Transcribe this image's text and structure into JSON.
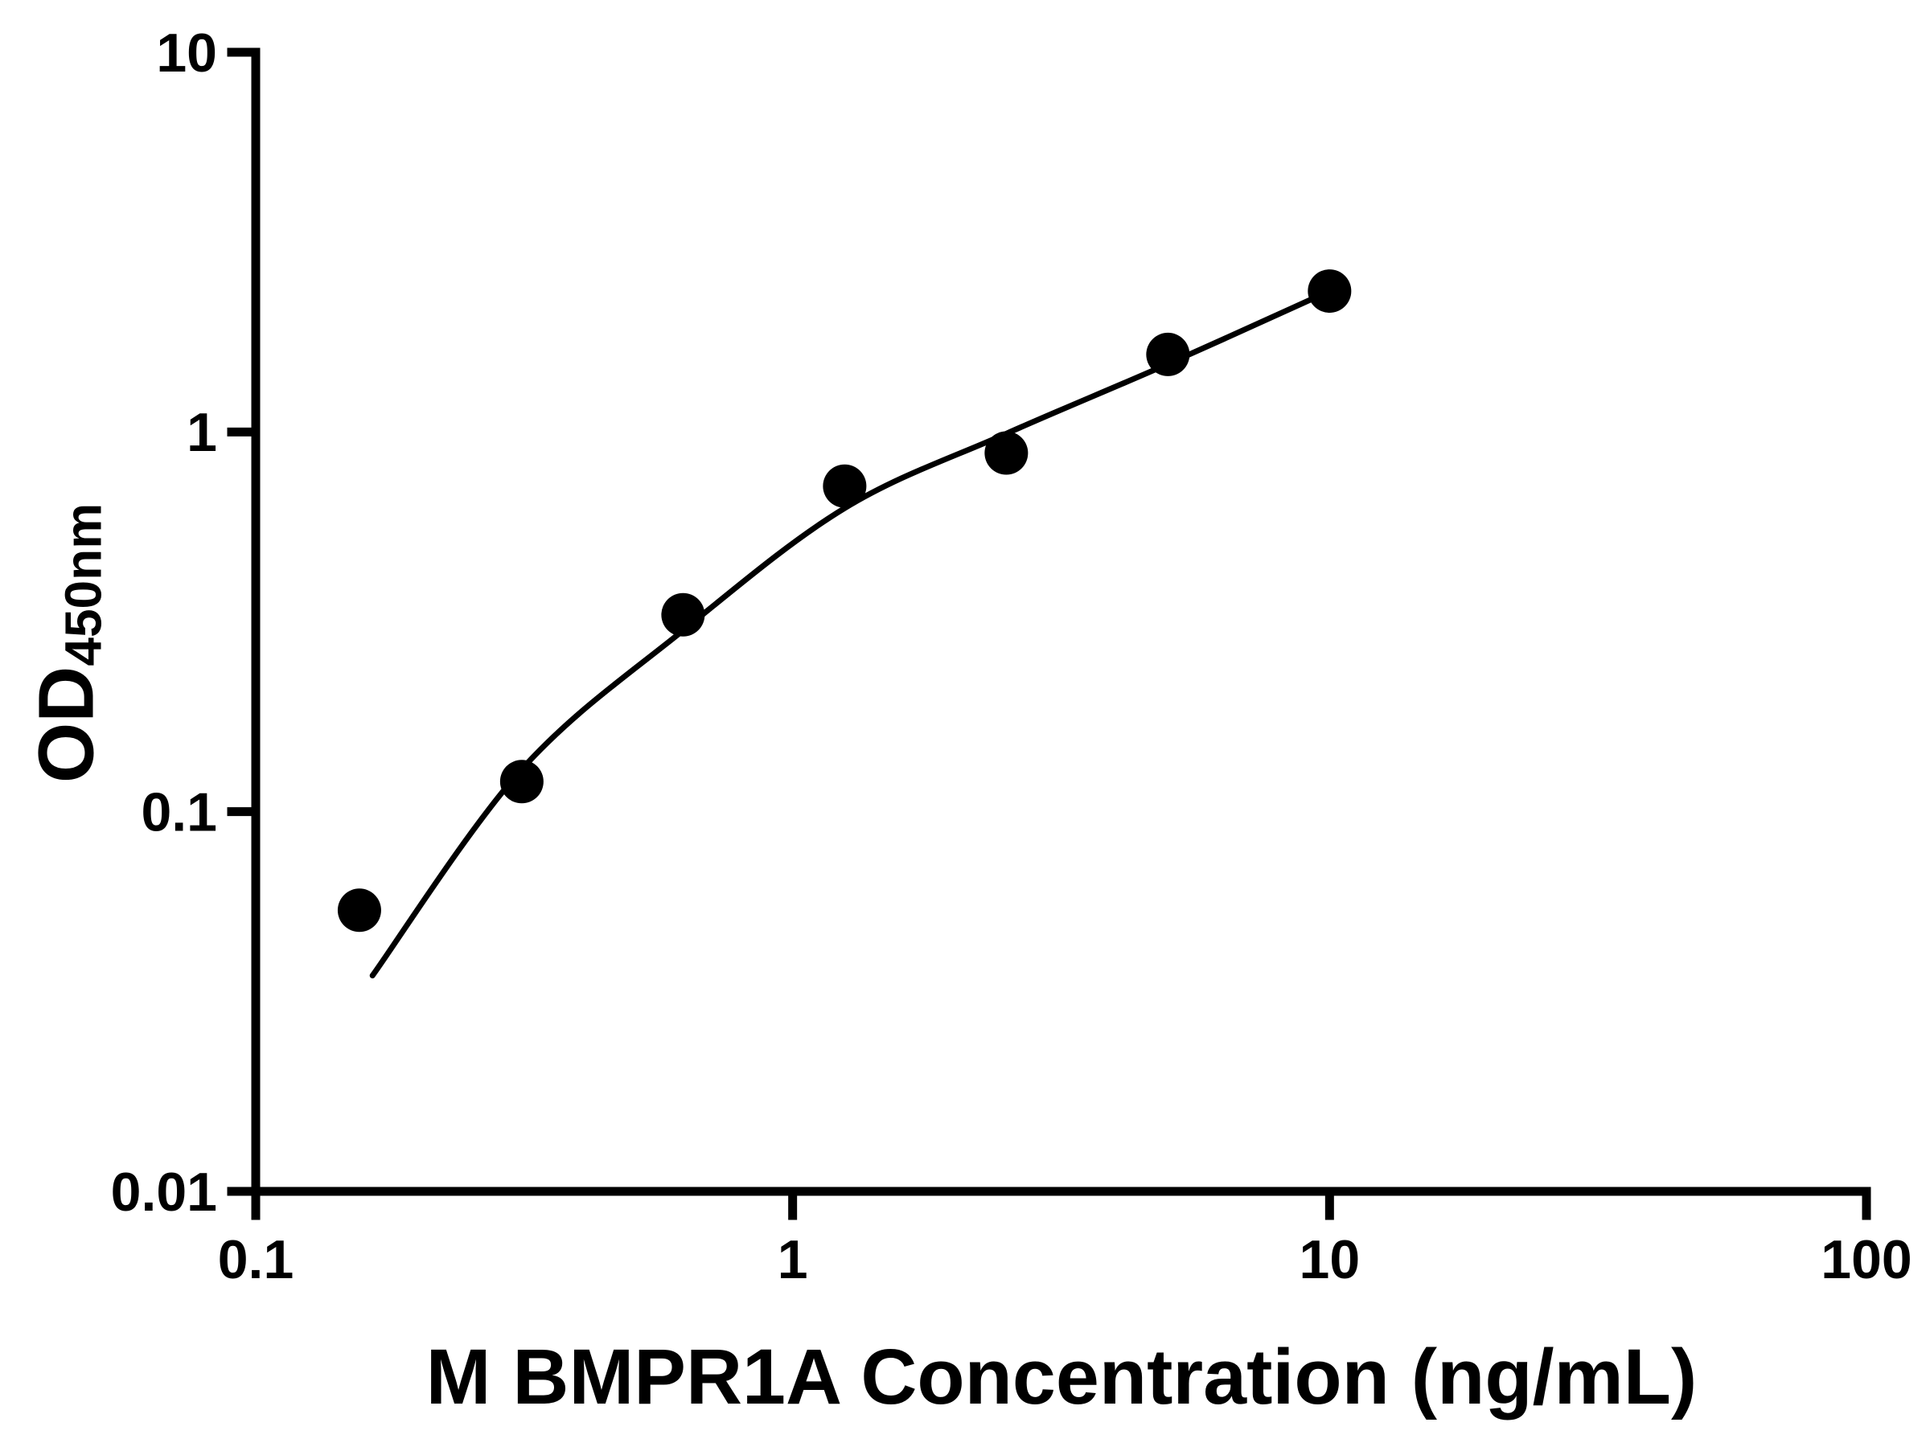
{
  "chart_data": {
    "type": "scatter",
    "title": "",
    "xlabel": "M BMPR1A Concentration (ng/mL)",
    "ylabel": "OD",
    "ylabel_subscript": "450nm",
    "x_scale": "log",
    "y_scale": "log",
    "xlim": [
      0.1,
      100
    ],
    "ylim": [
      0.01,
      10
    ],
    "x_ticks": [
      0.1,
      1,
      10,
      100
    ],
    "x_tick_labels": [
      "0.1",
      "1",
      "10",
      "100"
    ],
    "y_ticks": [
      0.01,
      0.1,
      1,
      10
    ],
    "y_tick_labels": [
      "0.01",
      "0.1",
      "1",
      "10"
    ],
    "grid": false,
    "legend": "none",
    "background_color": "#ffffff",
    "axis_color": "#000000",
    "marker_color": "#000000",
    "curve_color": "#000000",
    "series": [
      {
        "name": "standard-points",
        "type": "scatter",
        "marker": "circle",
        "x": [
          0.156,
          0.313,
          0.625,
          1.25,
          2.5,
          5,
          10
        ],
        "y": [
          0.055,
          0.12,
          0.33,
          0.72,
          0.88,
          1.6,
          2.35
        ]
      },
      {
        "name": "fitted-curve",
        "type": "line",
        "x": [
          0.165,
          0.3125,
          0.625,
          1.25,
          2.5,
          5,
          10
        ],
        "y": [
          0.037,
          0.129,
          0.3,
          0.63,
          0.99,
          1.51,
          2.35
        ]
      }
    ]
  }
}
